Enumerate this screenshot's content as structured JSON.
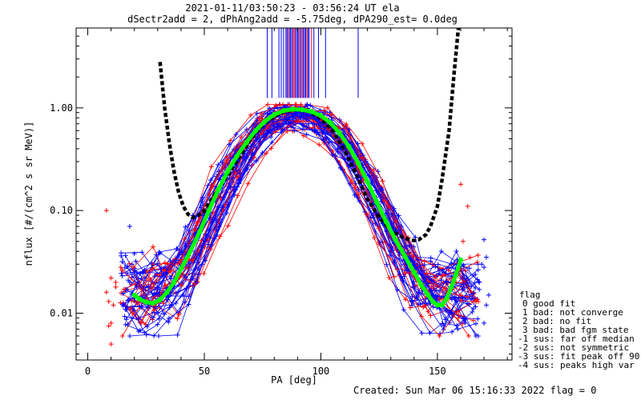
{
  "chart_data": {
    "type": "scatter",
    "title_line1": "2021-01-11/03:50:23 - 03:56:24 UT ela",
    "title_line2": "dSectr2add = 2, dPhAng2add = -5.75deg, dPA290_est=    0.0deg",
    "xlabel": "PA [deg]",
    "ylabel": "nflux [#/(cm^2 s sr MeV)]",
    "xlim": [
      -5,
      182
    ],
    "ylim": [
      0.0035,
      6.0
    ],
    "yscale": "log",
    "xticks": [
      0,
      50,
      100,
      150
    ],
    "yticks": [
      {
        "v": 0.01,
        "label": "0.01"
      },
      {
        "v": 0.1,
        "label": "0.10"
      },
      {
        "v": 1.0,
        "label": "1.00"
      }
    ],
    "legend": {
      "title": "flag",
      "entries": [
        "0 good fit",
        "1 bad: not converge",
        "2 bad: no fit",
        "3 bad: bad fgm state",
        "-1 sus: far off median",
        "-2 sus: not symmetric",
        "-3 sus: fit peak off 90",
        "-4 sus: peaks high var"
      ]
    },
    "footer": "Created: Sun Mar 06 15:16:33 2022   flag = 0",
    "colors": {
      "red": "#ff0000",
      "blue": "#0000ff",
      "green": "#00ff00",
      "black": "#000000"
    },
    "series": [
      {
        "style": "black-dashed",
        "x": [
          31,
          33,
          35,
          37,
          39,
          41,
          43,
          45,
          47,
          50,
          55,
          60,
          65,
          70,
          75,
          80,
          85,
          90,
          95,
          100,
          105,
          110,
          115,
          120,
          125,
          130,
          135,
          138,
          140,
          142,
          145,
          147,
          150,
          152,
          155,
          157,
          159
        ],
        "y": [
          2.8,
          1.0,
          0.45,
          0.24,
          0.15,
          0.11,
          0.092,
          0.086,
          0.088,
          0.1,
          0.15,
          0.22,
          0.33,
          0.5,
          0.68,
          0.83,
          0.93,
          0.96,
          0.92,
          0.79,
          0.6,
          0.39,
          0.23,
          0.13,
          0.085,
          0.064,
          0.055,
          0.052,
          0.051,
          0.052,
          0.058,
          0.07,
          0.11,
          0.2,
          0.6,
          2.0,
          6.0
        ]
      },
      {
        "style": "green-fit",
        "x": [
          20,
          22,
          25,
          28,
          31,
          34,
          37,
          40,
          44,
          48,
          52,
          56,
          60,
          64,
          68,
          72,
          76,
          80,
          84,
          88,
          92,
          96,
          100,
          104,
          108,
          112,
          116,
          120,
          124,
          128,
          132,
          136,
          140,
          143,
          146,
          148,
          150,
          152,
          154,
          156,
          158,
          160
        ],
        "y": [
          0.015,
          0.0138,
          0.0128,
          0.0125,
          0.0135,
          0.016,
          0.02,
          0.027,
          0.04,
          0.062,
          0.1,
          0.16,
          0.24,
          0.34,
          0.46,
          0.6,
          0.74,
          0.86,
          0.94,
          0.97,
          0.96,
          0.92,
          0.84,
          0.72,
          0.57,
          0.42,
          0.29,
          0.19,
          0.12,
          0.078,
          0.052,
          0.036,
          0.025,
          0.019,
          0.015,
          0.013,
          0.012,
          0.012,
          0.014,
          0.018,
          0.024,
          0.033
        ]
      }
    ],
    "scatter_left": [
      {
        "color": "red",
        "x": [
          8,
          10,
          12,
          8,
          9,
          11,
          10,
          9,
          10,
          12
        ],
        "y": [
          0.1,
          0.022,
          0.02,
          0.016,
          0.013,
          0.012,
          0.008,
          0.0075,
          0.005,
          0.018
        ]
      },
      {
        "color": "blue",
        "x": [
          18,
          20,
          19,
          20,
          18,
          21,
          20,
          19
        ],
        "y": [
          0.07,
          0.038,
          0.03,
          0.025,
          0.02,
          0.018,
          0.014,
          0.009
        ]
      }
    ],
    "scatter_right": [
      {
        "color": "red",
        "x": [
          160,
          163,
          161,
          164,
          162,
          158,
          160,
          159
        ],
        "y": [
          0.18,
          0.11,
          0.05,
          0.035,
          0.026,
          0.02,
          0.015,
          0.009
        ]
      },
      {
        "color": "blue",
        "x": [
          170,
          171,
          169,
          170,
          168,
          172,
          171,
          170
        ],
        "y": [
          0.052,
          0.035,
          0.03,
          0.028,
          0.02,
          0.015,
          0.012,
          0.008
        ]
      }
    ],
    "vlines": {
      "ymin": 1.25,
      "red_x": [
        86,
        88,
        89,
        91,
        92,
        94,
        96
      ],
      "blue_x": [
        77,
        79,
        82,
        83,
        84,
        85,
        85.5,
        86.5,
        87,
        87.5,
        88.5,
        89.5,
        90,
        90.5,
        91.5,
        92.5,
        93,
        93.5,
        94.5,
        95,
        97,
        99,
        102,
        116
      ]
    }
  }
}
